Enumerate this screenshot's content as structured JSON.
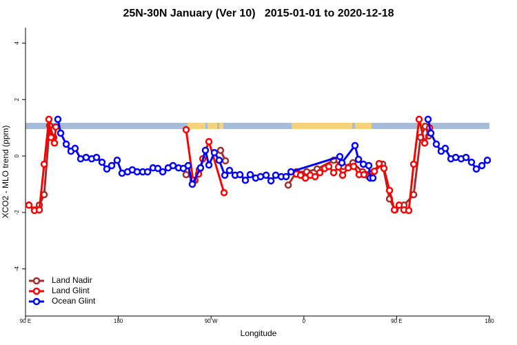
{
  "chart_data": {
    "type": "line",
    "title": "25N-30N January (Ver 10)   2015-01-01 to 2020-12-18",
    "x_label": "Longitude",
    "y_label": "XCO2 - MLO trend (ppm)",
    "xlim": [
      90,
      540
    ],
    "ylim": [
      -5.67,
      4.55
    ],
    "xticks": [
      {
        "value": 90,
        "label": "90 E"
      },
      180,
      {
        "value": 270,
        "label": "90 W"
      },
      {
        "value": 360,
        "label": "0"
      },
      {
        "value": 450,
        "label": "90 E"
      },
      {
        "value": 540,
        "label": "180"
      }
    ],
    "yticks": [
      -4,
      -2,
      0,
      2,
      4
    ],
    "grid": false,
    "legend": "bottomleft",
    "series": [
      {
        "name": "Land Nadir",
        "color": "#a52a2a",
        "x": [
          93.3,
          98.7,
          103.4,
          108.1,
          113.4,
          117.4,
          null,
          245.8,
          254.5,
          258.5,
          null,
          279.2,
          283.9,
          null,
          344.8,
          352.8,
          362.8,
          372.9,
          388.9,
          398.3,
          407.6,
          417.0,
          426.4,
          436.4,
          443.1,
          448.4,
          457.1,
          466.5,
          473.2,
          477.8,
          481.2
        ],
        "values": [
          -1.74,
          -1.91,
          -1.74,
          -1.37,
          1.08,
          0.66,
          null,
          -0.66,
          -0.86,
          -0.49,
          null,
          0.2,
          -0.17,
          null,
          -1.03,
          -0.56,
          -0.56,
          -0.46,
          -0.15,
          -0.37,
          -0.24,
          -0.56,
          -0.59,
          -0.29,
          -1.52,
          -1.91,
          -1.74,
          -1.37,
          0.66,
          1.05,
          0.71
        ]
      },
      {
        "name": "Land Glint",
        "color": "#ff0000",
        "x": [
          93.3,
          98.7,
          103.4,
          108.1,
          112.7,
          114.7,
          118.1,
          119.4,
          null,
          245.8,
          252.5,
          257.8,
          261.9,
          267.9,
          282.6,
          null,
          352.8,
          356.8,
          361.5,
          366.2,
          370.9,
          375.5,
          380.2,
          384.2,
          388.9,
          393.6,
          397.6,
          403.0,
          408.3,
          413.6,
          418.3,
          423.0,
          428.4,
          433.0,
          437.7,
          443.1,
          447.8,
          452.4,
          457.1,
          461.8,
          466.5,
          471.8,
          477.2,
          481.9
        ],
        "values": [
          -1.74,
          -1.93,
          -1.91,
          -0.29,
          1.3,
          0.66,
          0.46,
          1.03,
          null,
          0.93,
          -0.86,
          -0.64,
          -0.1,
          0.51,
          -1.3,
          null,
          -0.64,
          -0.68,
          -0.78,
          -0.68,
          -0.73,
          -0.59,
          -0.44,
          -0.37,
          -0.59,
          -0.39,
          -0.68,
          -0.42,
          -0.37,
          -0.66,
          -0.66,
          -0.73,
          -0.54,
          -0.27,
          -0.44,
          -1.22,
          -1.91,
          -1.74,
          -1.91,
          -1.93,
          -0.29,
          1.3,
          0.46,
          1.0
        ]
      },
      {
        "name": "Ocean Glint",
        "color": "#0000ff",
        "x": [
          121.4,
          124.1,
          129.5,
          134.1,
          138.1,
          143.5,
          148.8,
          154.2,
          158.9,
          164.2,
          168.9,
          173.6,
          178.9,
          183.6,
          189.0,
          193.6,
          198.3,
          203.7,
          208.4,
          213.7,
          218.4,
          223.1,
          228.4,
          233.1,
          238.5,
          243.1,
          247.8,
          251.8,
          259.8,
          264.5,
          267.9,
          273.2,
          277.9,
          283.3,
          287.9,
          293.3,
          298.0,
          303.3,
          308.0,
          313.3,
          318.0,
          323.4,
          328.1,
          332.7,
          338.1,
          342.8,
          347.5,
          394.9,
          396.9,
          409.6,
          413.0,
          417.7,
          423.0,
          424.4,
          427.0,
          null,
          480.5,
          483.2,
          488.5,
          493.2,
          497.2,
          502.6,
          507.3,
          512.6,
          517.3,
          522.6,
          527.3,
          532.7,
          538.0
        ],
        "values": [
          1.3,
          0.81,
          0.42,
          0.17,
          0.27,
          -0.1,
          -0.05,
          -0.1,
          -0.05,
          -0.22,
          -0.46,
          -0.34,
          -0.15,
          -0.61,
          -0.56,
          -0.49,
          -0.56,
          -0.56,
          -0.56,
          -0.42,
          -0.44,
          -0.56,
          -0.42,
          -0.34,
          -0.42,
          -0.44,
          -0.34,
          -1.0,
          -0.42,
          0.2,
          -0.32,
          0.12,
          -0.15,
          -0.68,
          -0.51,
          -0.68,
          -0.66,
          -0.86,
          -0.66,
          -0.78,
          -0.73,
          -0.68,
          -0.88,
          -0.68,
          -0.73,
          -0.73,
          -0.56,
          -0.02,
          -0.24,
          0.37,
          -0.12,
          -0.29,
          -0.34,
          -0.78,
          -0.78,
          null,
          1.3,
          0.81,
          0.42,
          0.17,
          0.27,
          -0.1,
          -0.05,
          -0.1,
          -0.05,
          -0.22,
          -0.46,
          -0.34,
          -0.15
        ]
      }
    ]
  }
}
